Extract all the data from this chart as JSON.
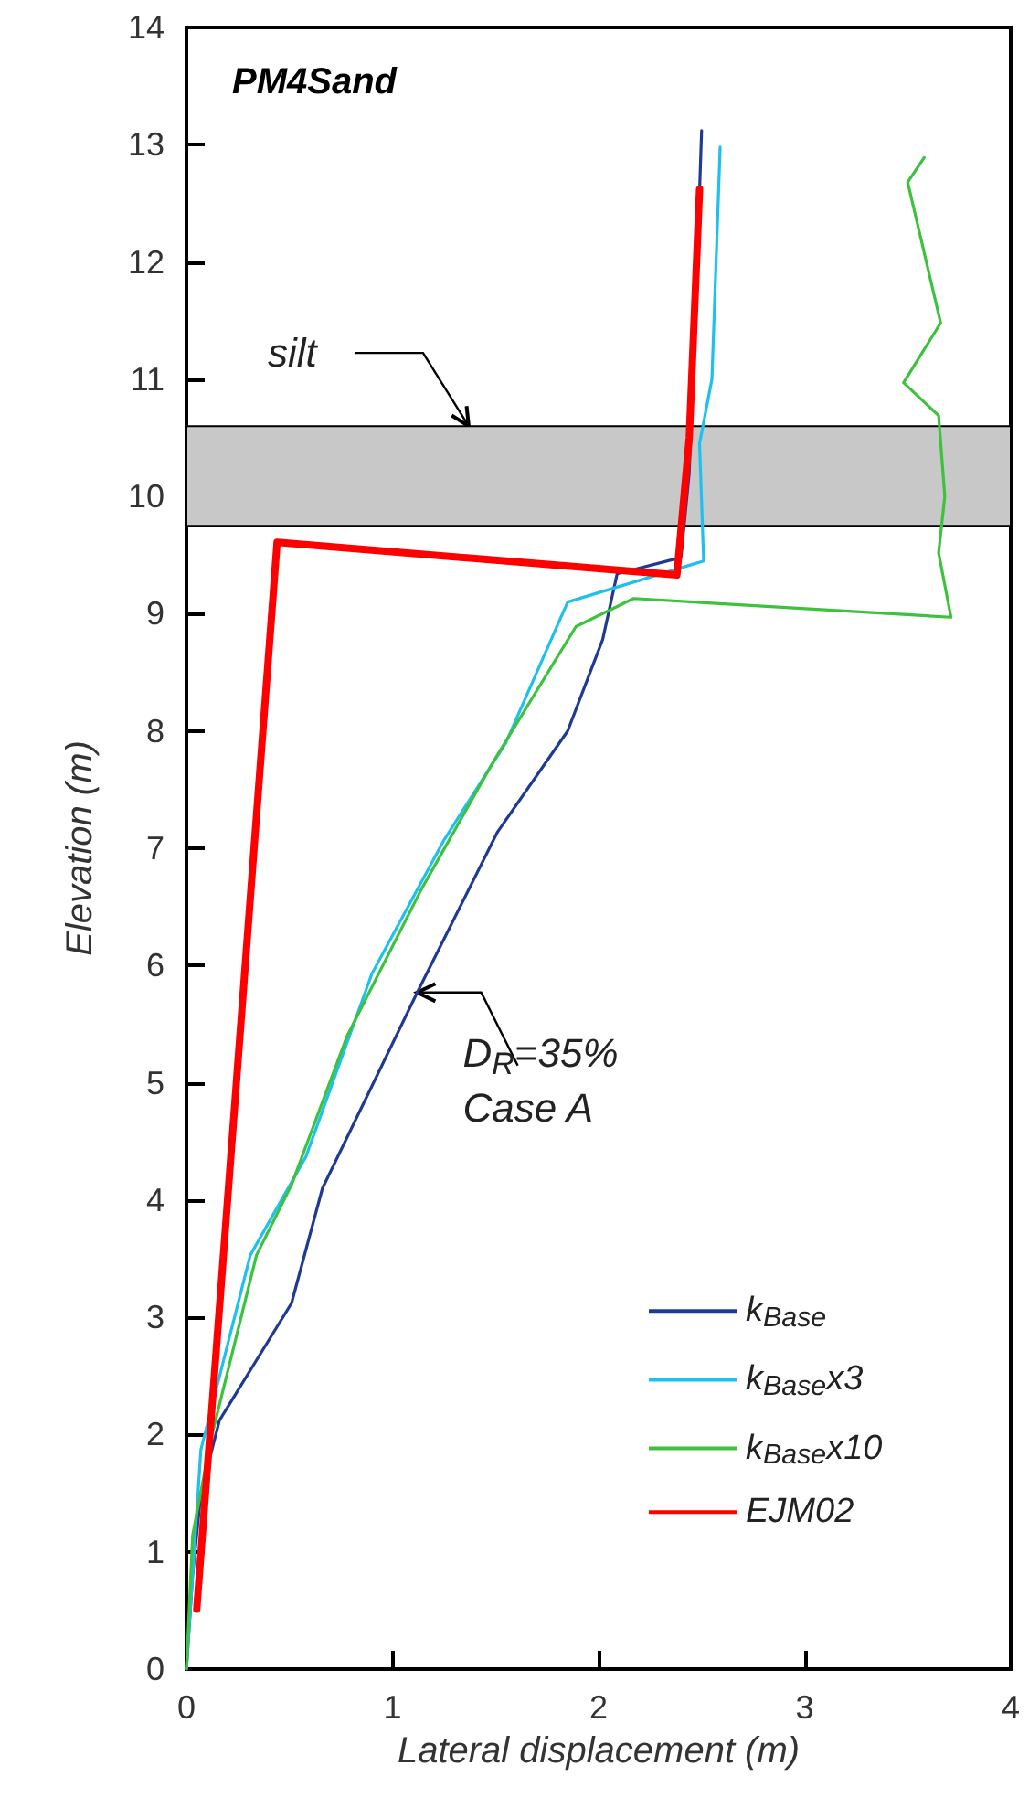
{
  "chart_data": {
    "type": "line",
    "title": "PM4Sand",
    "xlabel": "Lateral displacement (m)",
    "ylabel": "Elevation (m)",
    "xlim": [
      0,
      4
    ],
    "xticks": [
      0,
      1,
      2,
      3,
      4
    ],
    "ylim": [
      0,
      14
    ],
    "yticks": [
      0,
      1,
      2,
      3,
      4,
      5,
      6,
      7,
      8,
      9,
      10,
      11,
      12,
      13,
      14
    ],
    "grid": false,
    "legend": "bottom right",
    "marker": "none",
    "line_style": "solid",
    "bands": [
      {
        "axis": "y",
        "from": 9.75,
        "to": 10.6,
        "color": "#c8c8c8"
      }
    ],
    "annotations": [
      {
        "text": "silt",
        "x": 1.37,
        "y": 10.6
      },
      {
        "text": "D$_{R}$=35%\nCase A",
        "x": 1.12,
        "y": 5.77
      }
    ],
    "series": [
      {
        "name": "k$_{Base}$",
        "color": "#1f3a93",
        "x": [
          2.5,
          2.49,
          2.44,
          2.4,
          2.09,
          2.02,
          1.85,
          1.51,
          1.12,
          0.66,
          0.51,
          0.16,
          0.07,
          0.03,
          0
        ],
        "values": [
          13.12,
          12.6,
          10.2,
          9.48,
          9.34,
          8.78,
          8.0,
          7.14,
          5.77,
          4.1,
          3.12,
          2.12,
          1.5,
          0.8,
          0
        ]
      },
      {
        "name": "k$_{Base}$x3",
        "color": "#1ec0f0",
        "x": [
          2.59,
          2.55,
          2.49,
          2.51,
          1.85,
          1.55,
          1.25,
          0.9,
          0.58,
          0.31,
          0.07,
          0
        ],
        "values": [
          12.98,
          11.0,
          10.45,
          9.45,
          9.1,
          7.9,
          7.07,
          5.93,
          4.37,
          3.53,
          1.87,
          0
        ]
      },
      {
        "name": "k$_{Base}$x10",
        "color": "#3cc23c",
        "x": [
          3.58,
          3.5,
          3.66,
          3.48,
          3.65,
          3.68,
          3.65,
          3.71,
          2.17,
          1.89,
          1.49,
          1.14,
          0.78,
          0.51,
          0.34,
          0.12,
          0.03,
          0
        ],
        "values": [
          12.89,
          12.68,
          11.48,
          10.97,
          10.69,
          10.0,
          9.52,
          8.97,
          9.13,
          8.89,
          7.74,
          6.65,
          5.4,
          4.13,
          3.53,
          1.97,
          1.14,
          0
        ]
      },
      {
        "name": "EJM02",
        "color": "#ff0000",
        "x": [
          2.49,
          2.44,
          2.39,
          2.38,
          0.44,
          0.05
        ],
        "values": [
          12.62,
          10.5,
          9.52,
          9.33,
          9.61,
          0.51
        ]
      }
    ]
  }
}
